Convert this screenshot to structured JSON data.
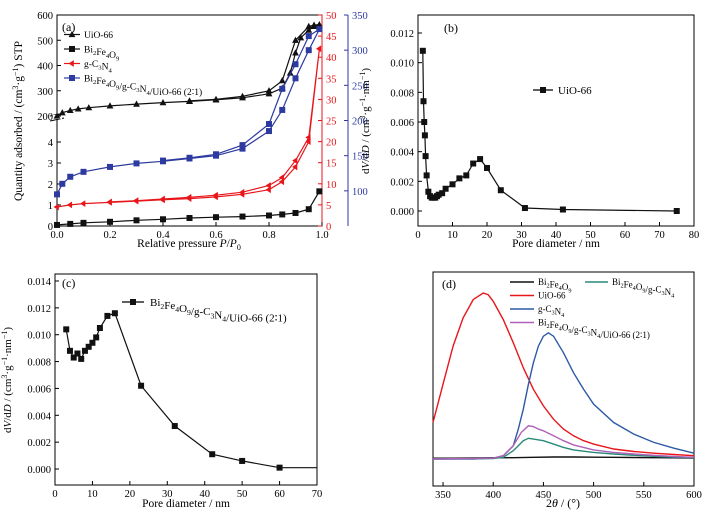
{
  "chart_data": [
    {
      "panel": "(a)",
      "type": "line",
      "xlabel": "Relative pressure P/P0",
      "ylabel": "Quantity adsorbed / (cm³·g⁻¹) STP",
      "x_ticks": [
        "0.0",
        "0.2",
        "0.4",
        "0.6",
        "0.8",
        "1.0"
      ],
      "left_upper_ticks": [
        "200",
        "300",
        "400",
        "500",
        "600"
      ],
      "left_lower_ticks": [
        "0",
        "1",
        "2",
        "3",
        "4"
      ],
      "red_ticks": [
        "0",
        "5",
        "10",
        "15",
        "20",
        "25",
        "30",
        "35",
        "40",
        "45",
        "50"
      ],
      "blue_ticks": [
        "100",
        "150",
        "200",
        "250",
        "300",
        "350"
      ],
      "legend": [
        "UiO-66",
        "Bi₂Fe₄O₉",
        "g-C₃N₄",
        "Bi₂Fe₄O₉/g-C₃N₄/UiO-66 (2∶1)"
      ],
      "series": [
        {
          "name": "UiO-66",
          "axis": "left_upper",
          "color": "#111111",
          "marker": "triangle",
          "x": [
            0.0,
            0.02,
            0.05,
            0.08,
            0.12,
            0.2,
            0.3,
            0.4,
            0.5,
            0.6,
            0.7,
            0.8,
            0.85,
            0.88,
            0.9,
            0.92,
            0.95,
            0.97,
            0.99,
            0.97,
            0.95,
            0.9,
            0.85,
            0.8,
            0.7,
            0.6,
            0.5
          ],
          "y": [
            200,
            213,
            222,
            228,
            233,
            240,
            247,
            253,
            258,
            264,
            272,
            288,
            310,
            370,
            450,
            510,
            540,
            555,
            562,
            560,
            555,
            500,
            340,
            300,
            278,
            266,
            260
          ]
        },
        {
          "name": "Bi₂Fe₄O₉",
          "axis": "left_lower",
          "color": "#111111",
          "marker": "square",
          "x": [
            0.0,
            0.05,
            0.1,
            0.2,
            0.3,
            0.4,
            0.5,
            0.6,
            0.7,
            0.8,
            0.85,
            0.9,
            0.95,
            0.99
          ],
          "y": [
            0.05,
            0.1,
            0.15,
            0.2,
            0.27,
            0.32,
            0.38,
            0.42,
            0.45,
            0.5,
            0.55,
            0.62,
            0.8,
            1.65
          ]
        },
        {
          "name": "g-C₃N₄",
          "axis": "red",
          "color": "#e8161b",
          "marker": "diamond",
          "x": [
            0.0,
            0.05,
            0.1,
            0.2,
            0.3,
            0.4,
            0.5,
            0.6,
            0.7,
            0.8,
            0.85,
            0.9,
            0.95,
            0.99,
            0.95,
            0.9,
            0.85,
            0.8,
            0.7,
            0.6,
            0.5,
            0.4,
            0.3,
            0.2
          ],
          "y": [
            4.5,
            5.0,
            5.3,
            5.6,
            5.9,
            6.2,
            6.5,
            6.9,
            7.5,
            8.6,
            10.5,
            14.0,
            20.0,
            42.0,
            21.0,
            15.5,
            11.5,
            9.6,
            8.0,
            7.3,
            6.8,
            6.4,
            6.0,
            5.7
          ]
        },
        {
          "name": "Bi₂Fe₄O₉/g-C₃N₄/UiO-66 (2∶1)",
          "axis": "blue",
          "color": "#2d3aa0",
          "marker": "square",
          "x": [
            0.0,
            0.02,
            0.05,
            0.1,
            0.2,
            0.3,
            0.4,
            0.5,
            0.6,
            0.7,
            0.8,
            0.85,
            0.9,
            0.95,
            0.99,
            0.95,
            0.9,
            0.85,
            0.8,
            0.7,
            0.6,
            0.5,
            0.4
          ],
          "y": [
            95,
            110,
            120,
            127,
            134,
            139,
            142,
            146,
            150,
            160,
            185,
            215,
            260,
            300,
            330,
            320,
            280,
            245,
            195,
            165,
            152,
            147,
            143
          ]
        }
      ]
    },
    {
      "panel": "(b)",
      "type": "line",
      "xlabel": "Pore diameter / nm",
      "ylabel": "dV/dD / (cm³·g⁻¹·nm⁻¹)",
      "legend": [
        "UiO-66"
      ],
      "x_ticks": [
        "0",
        "10",
        "20",
        "30",
        "40",
        "50",
        "60",
        "70",
        "80"
      ],
      "y_ticks": [
        "0.000",
        "0.002",
        "0.004",
        "0.006",
        "0.008",
        "0.010",
        "0.012"
      ],
      "series": [
        {
          "name": "UiO-66",
          "color": "#111111",
          "marker": "square",
          "x": [
            1.4,
            1.6,
            1.8,
            2.0,
            2.2,
            2.5,
            3.0,
            3.5,
            4.0,
            4.5,
            5.0,
            5.5,
            6.0,
            7.0,
            8.0,
            10,
            12,
            14,
            16,
            18,
            20,
            24,
            31,
            42,
            75
          ],
          "y": [
            0.0108,
            0.0074,
            0.006,
            0.0051,
            0.0037,
            0.0024,
            0.0013,
            0.001,
            0.0009,
            0.0009,
            0.0009,
            0.001,
            0.0011,
            0.0012,
            0.0015,
            0.0018,
            0.0022,
            0.0024,
            0.0032,
            0.0035,
            0.0029,
            0.0014,
            0.0002,
            0.0001,
            0.0
          ]
        }
      ]
    },
    {
      "panel": "(c)",
      "type": "line",
      "xlabel": "Pore diameter / nm",
      "ylabel": "dV/dD / (cm³·g⁻¹·nm⁻¹)",
      "legend": [
        "Bi₂Fe₄O₉/g-C₃N₄/UiO-66 (2∶1)"
      ],
      "x_ticks": [
        "0",
        "10",
        "20",
        "30",
        "40",
        "50",
        "60",
        "70"
      ],
      "y_ticks": [
        "0.000",
        "0.002",
        "0.004",
        "0.006",
        "0.008",
        "0.010",
        "0.012",
        "0.014"
      ],
      "series": [
        {
          "name": "Bi₂Fe₄O₉/g-C₃N₄/UiO-66 (2∶1)",
          "color": "#111111",
          "marker": "square",
          "x": [
            3,
            4,
            5,
            6,
            7,
            8,
            9,
            10,
            11,
            12,
            14,
            16,
            23,
            32,
            42,
            50,
            60,
            70
          ],
          "y": [
            0.0104,
            0.0088,
            0.0083,
            0.0086,
            0.0082,
            0.0088,
            0.0091,
            0.0094,
            0.0098,
            0.0105,
            0.0114,
            0.0116,
            0.0062,
            0.0032,
            0.0011,
            0.0006,
            0.0001,
            0.0001
          ]
        }
      ]
    },
    {
      "panel": "(d)",
      "type": "line",
      "xlabel": "2θ / (°)",
      "ylabel": "",
      "legend_col1": [
        "Bi₂Fe₄O₉",
        "UiO-66",
        "g-C₃N₄",
        "Bi₂Fe₄O₉/g-C₃N₄/UiO-66 (2∶1)"
      ],
      "legend_col2": [
        "Bi₂Fe₄O₉/g-C₃N₄"
      ],
      "x_ticks": [
        "350",
        "400",
        "450",
        "500",
        "550",
        "600"
      ],
      "ylim": [
        0,
        1
      ],
      "series": [
        {
          "name": "Bi₂Fe₄O₉",
          "color": "#111111",
          "x": [
            340,
            360,
            380,
            400,
            420,
            440,
            460,
            480,
            500,
            520,
            540,
            560,
            580,
            600
          ],
          "y": [
            0.005,
            0.005,
            0.006,
            0.007,
            0.008,
            0.01,
            0.012,
            0.012,
            0.011,
            0.01,
            0.009,
            0.008,
            0.007,
            0.006
          ]
        },
        {
          "name": "UiO-66",
          "color": "#e8161b",
          "x": [
            340,
            350,
            360,
            370,
            380,
            390,
            395,
            400,
            410,
            420,
            430,
            440,
            450,
            460,
            470,
            480,
            490,
            500,
            520,
            540,
            560,
            580,
            600
          ],
          "y": [
            0.22,
            0.45,
            0.68,
            0.85,
            0.96,
            1.0,
            0.99,
            0.95,
            0.84,
            0.7,
            0.55,
            0.42,
            0.32,
            0.24,
            0.18,
            0.14,
            0.11,
            0.09,
            0.06,
            0.045,
            0.035,
            0.027,
            0.02
          ]
        },
        {
          "name": "g-C₃N₄",
          "color": "#2d5aa6",
          "x": [
            340,
            380,
            400,
            410,
            420,
            425,
            430,
            435,
            440,
            445,
            450,
            455,
            460,
            470,
            480,
            490,
            500,
            520,
            540,
            560,
            580,
            600
          ],
          "y": [
            0.0,
            0.0,
            0.005,
            0.02,
            0.08,
            0.18,
            0.3,
            0.45,
            0.58,
            0.68,
            0.74,
            0.76,
            0.74,
            0.64,
            0.52,
            0.42,
            0.33,
            0.22,
            0.15,
            0.1,
            0.065,
            0.035
          ]
        },
        {
          "name": "Bi₂Fe₄O₉/g-C₃N₄",
          "color": "#2a8a7a",
          "x": [
            340,
            400,
            410,
            420,
            430,
            435,
            440,
            450,
            460,
            470,
            480,
            500,
            520,
            540,
            560,
            580,
            600
          ],
          "y": [
            0.0,
            0.003,
            0.01,
            0.05,
            0.11,
            0.125,
            0.12,
            0.11,
            0.09,
            0.07,
            0.055,
            0.04,
            0.03,
            0.022,
            0.016,
            0.011,
            0.008
          ]
        },
        {
          "name": "Bi₂Fe₄O₉/g-C₃N₄/UiO-66 (2∶1)",
          "color": "#b061b8",
          "x": [
            340,
            400,
            410,
            420,
            428,
            435,
            440,
            445,
            450,
            460,
            470,
            480,
            490,
            500,
            520,
            540,
            560,
            580,
            600
          ],
          "y": [
            0.0,
            0.005,
            0.02,
            0.08,
            0.16,
            0.2,
            0.195,
            0.18,
            0.17,
            0.14,
            0.11,
            0.085,
            0.07,
            0.055,
            0.04,
            0.03,
            0.022,
            0.015,
            0.01
          ]
        }
      ]
    }
  ]
}
